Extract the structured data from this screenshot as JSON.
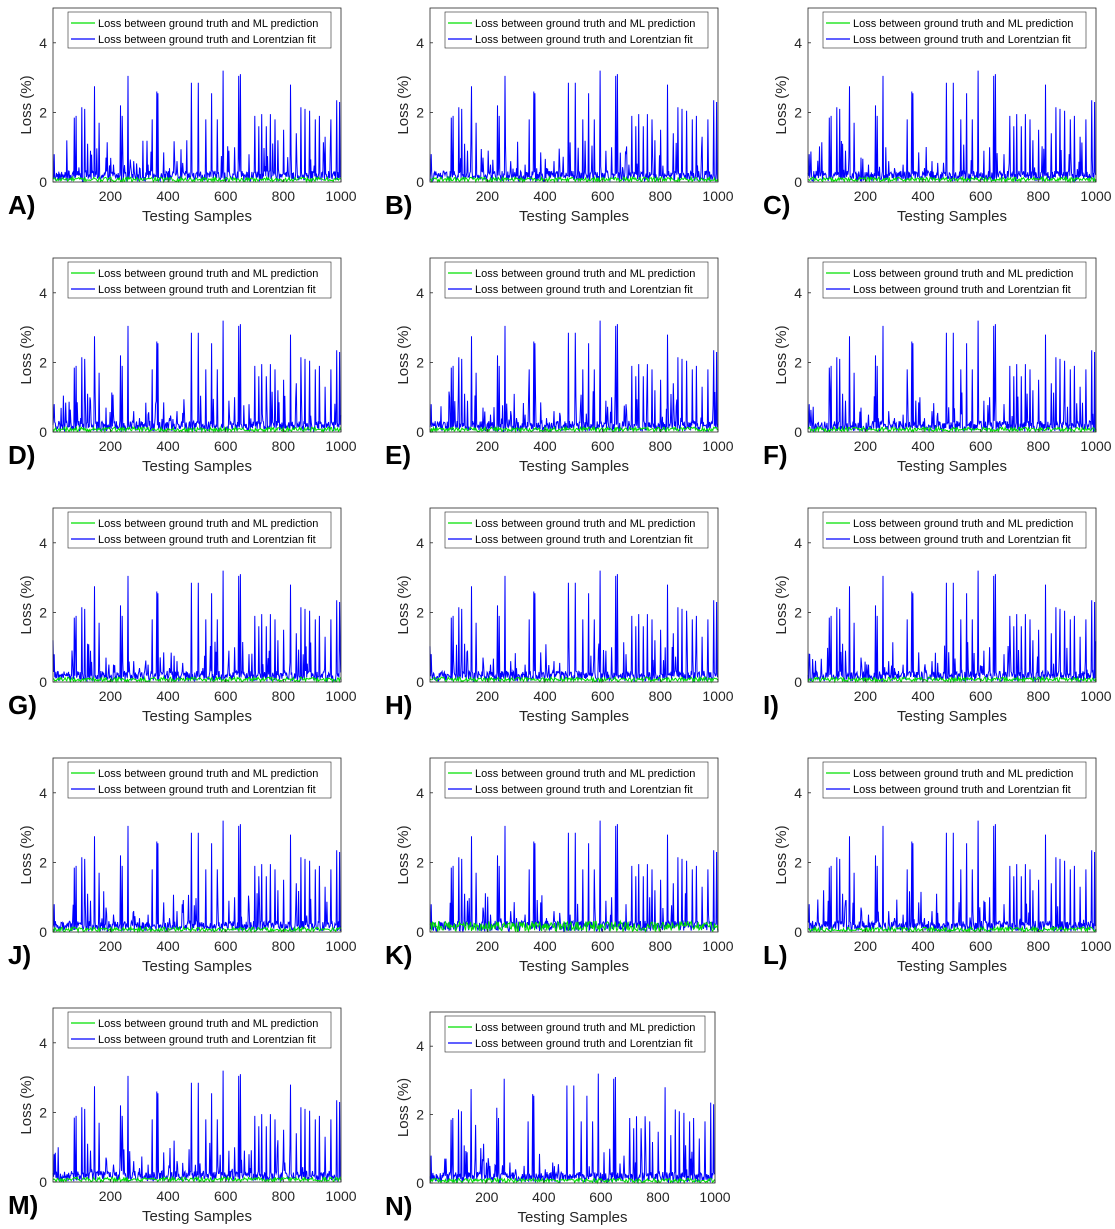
{
  "figure_labels": [
    "A)",
    "B)",
    "C)",
    "D)",
    "E)",
    "F)",
    "G)",
    "H)",
    "I)",
    "J)",
    "K)",
    "L)",
    "M)",
    "N)"
  ],
  "axes": {
    "xlabel": "Testing Samples",
    "ylabel": "Loss (%)",
    "xlim": [
      1,
      1000
    ],
    "ylim": [
      0,
      5
    ],
    "xticks": [
      200,
      400,
      600,
      800,
      1000
    ],
    "yticks": [
      0,
      2,
      4
    ]
  },
  "legend": {
    "placement": "top",
    "ml_label": "Loss between ground truth and ML prediction",
    "lor_label": "Loss between ground truth and Lorentzian fit"
  },
  "colors": {
    "ml": "#00e000",
    "lorentzian": "#0000ff",
    "axis": "#262626"
  },
  "chart_data": {
    "type": "line",
    "title": "",
    "xlabel": "Testing Samples",
    "ylabel": "Loss (%)",
    "xlim": [
      1,
      1000
    ],
    "ylim": [
      0,
      5
    ],
    "panels": 14,
    "series": [
      {
        "name": "Loss between ground truth and Lorentzian fit",
        "color": "#0000ff",
        "baseline": 0.15,
        "peaks": [
          {
            "x": 5,
            "y": 0.8
          },
          {
            "x": 75,
            "y": 1.85
          },
          {
            "x": 80,
            "y": 1.9
          },
          {
            "x": 100,
            "y": 2.15
          },
          {
            "x": 110,
            "y": 2.1
          },
          {
            "x": 120,
            "y": 1.1
          },
          {
            "x": 130,
            "y": 0.9
          },
          {
            "x": 145,
            "y": 2.75
          },
          {
            "x": 160,
            "y": 1.7
          },
          {
            "x": 185,
            "y": 0.7
          },
          {
            "x": 210,
            "y": 0.5
          },
          {
            "x": 235,
            "y": 2.2
          },
          {
            "x": 240,
            "y": 1.9
          },
          {
            "x": 260,
            "y": 3.05
          },
          {
            "x": 280,
            "y": 0.6
          },
          {
            "x": 300,
            "y": 0.4
          },
          {
            "x": 330,
            "y": 0.5
          },
          {
            "x": 345,
            "y": 1.8
          },
          {
            "x": 360,
            "y": 2.6
          },
          {
            "x": 365,
            "y": 2.55
          },
          {
            "x": 385,
            "y": 0.85
          },
          {
            "x": 405,
            "y": 0.4
          },
          {
            "x": 430,
            "y": 0.6
          },
          {
            "x": 450,
            "y": 0.55
          },
          {
            "x": 480,
            "y": 2.85
          },
          {
            "x": 505,
            "y": 2.85
          },
          {
            "x": 530,
            "y": 1.8
          },
          {
            "x": 550,
            "y": 2.55
          },
          {
            "x": 570,
            "y": 1.8
          },
          {
            "x": 590,
            "y": 3.2
          },
          {
            "x": 610,
            "y": 0.9
          },
          {
            "x": 630,
            "y": 1.0
          },
          {
            "x": 645,
            "y": 3.05
          },
          {
            "x": 650,
            "y": 3.1
          },
          {
            "x": 680,
            "y": 0.8
          },
          {
            "x": 700,
            "y": 1.9
          },
          {
            "x": 715,
            "y": 1.6
          },
          {
            "x": 725,
            "y": 1.95
          },
          {
            "x": 740,
            "y": 1.6
          },
          {
            "x": 755,
            "y": 1.95
          },
          {
            "x": 770,
            "y": 1.8
          },
          {
            "x": 780,
            "y": 1.2
          },
          {
            "x": 800,
            "y": 1.5
          },
          {
            "x": 825,
            "y": 2.8
          },
          {
            "x": 845,
            "y": 1.4
          },
          {
            "x": 860,
            "y": 2.15
          },
          {
            "x": 875,
            "y": 2.1
          },
          {
            "x": 890,
            "y": 2.05
          },
          {
            "x": 910,
            "y": 1.8
          },
          {
            "x": 925,
            "y": 1.9
          },
          {
            "x": 945,
            "y": 1.3
          },
          {
            "x": 965,
            "y": 1.8
          },
          {
            "x": 985,
            "y": 2.35
          },
          {
            "x": 995,
            "y": 2.3
          }
        ]
      },
      {
        "name": "Loss between ground truth and ML prediction",
        "color": "#00e000",
        "baseline": 0.08,
        "max": 0.3
      }
    ]
  }
}
